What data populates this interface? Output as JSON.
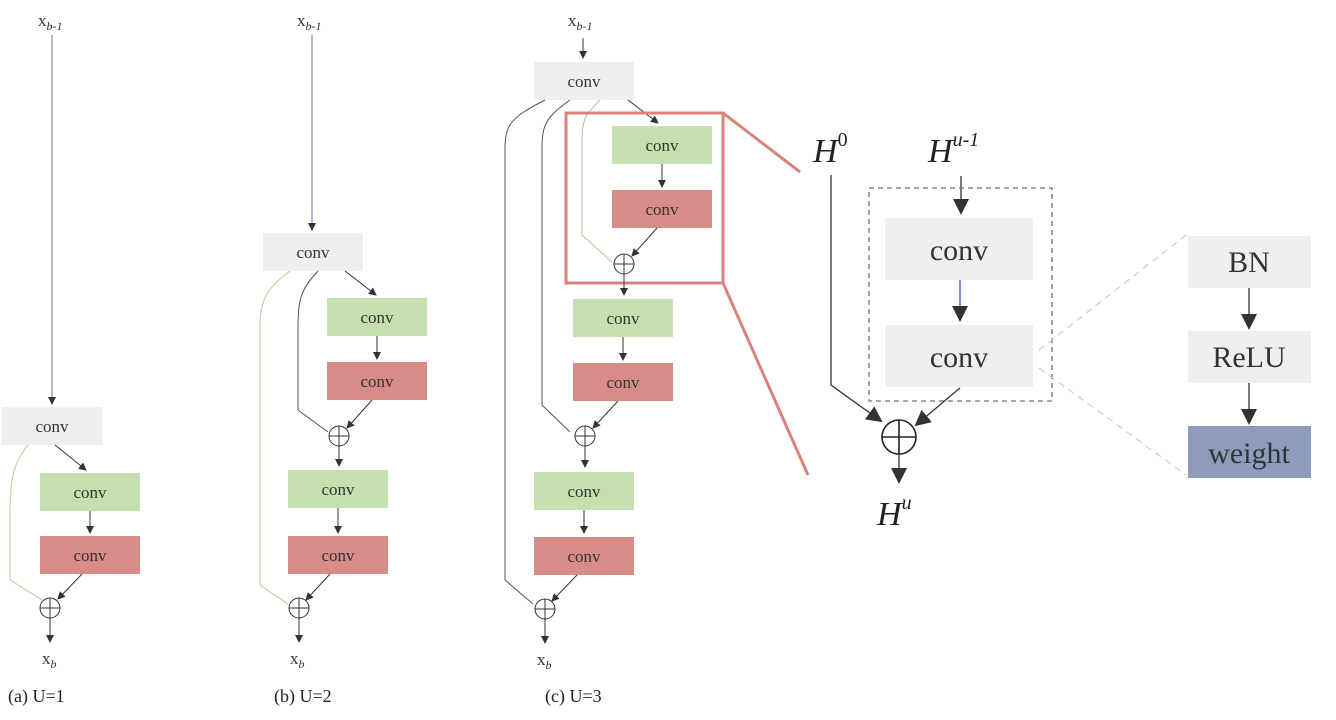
{
  "labels": {
    "conv": "conv",
    "input_var": "x",
    "input_sub": "b-1",
    "output_var": "x",
    "output_sub": "b",
    "plus_symbol": "⊕"
  },
  "captions": {
    "a": "(a) U=1",
    "b": "(b) U=2",
    "c": "(c) U=3"
  },
  "detail": {
    "h0_base": "H",
    "h0_sup": "0",
    "hu1_base": "H",
    "hu1_sup": "u-1",
    "hu_base": "H",
    "hu_sup": "u",
    "conv": "conv"
  },
  "layer": {
    "bn": "BN",
    "relu": "ReLU",
    "weight": "weight"
  },
  "colors": {
    "gray_box": "#efefef",
    "green_box": "#c6dfae",
    "red_box": "#d88c88",
    "blue_box": "#8d9cbd",
    "highlight": "#d9837c",
    "line": "#555555",
    "skip_line": "#c8d0a8"
  }
}
